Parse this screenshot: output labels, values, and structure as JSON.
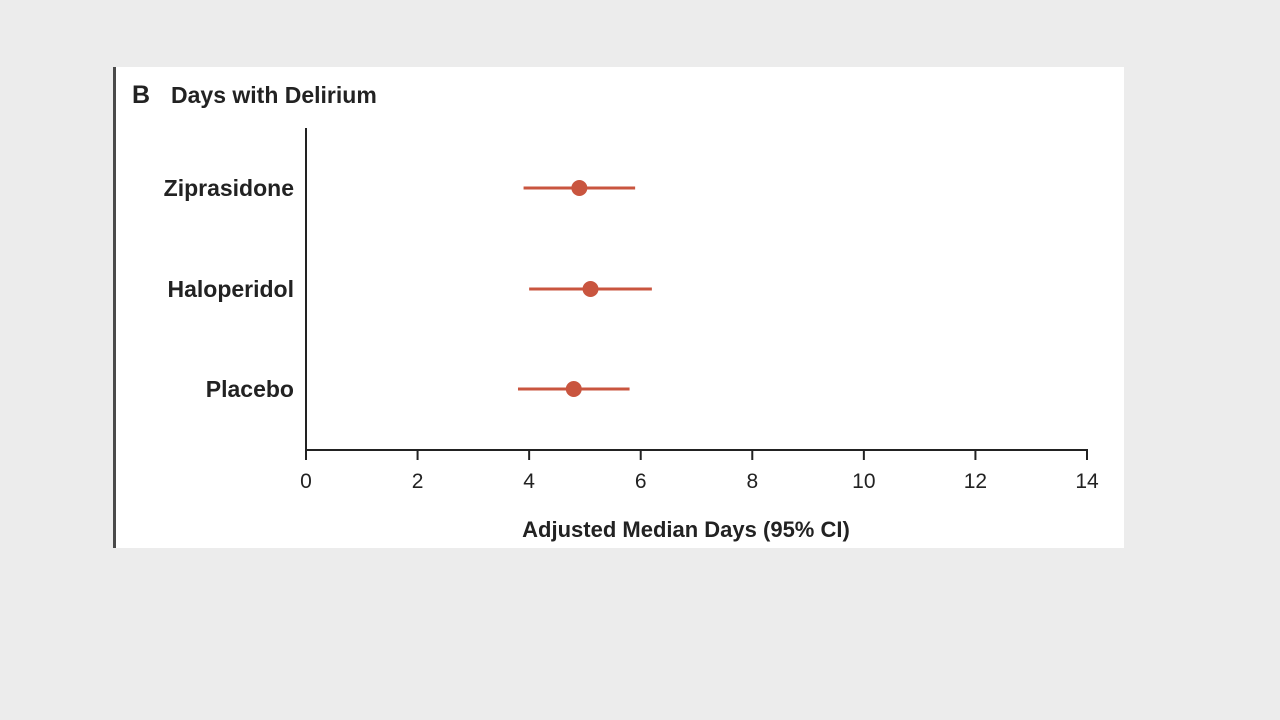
{
  "chart_data": {
    "type": "scatter",
    "panel_letter": "B",
    "title": "Days with Delirium",
    "xlabel": "Adjusted Median Days (95% CI)",
    "ylabel": "",
    "xlim": [
      0,
      14
    ],
    "xticks": [
      0,
      2,
      4,
      6,
      8,
      10,
      12,
      14
    ],
    "grid": false,
    "categories": [
      "Ziprasidone",
      "Haloperidol",
      "Placebo"
    ],
    "estimates": [
      4.9,
      5.1,
      4.8
    ],
    "ci_lower": [
      3.9,
      4.0,
      3.8
    ],
    "ci_upper": [
      5.9,
      6.2,
      5.8
    ],
    "marker_color": "#c9553f"
  }
}
